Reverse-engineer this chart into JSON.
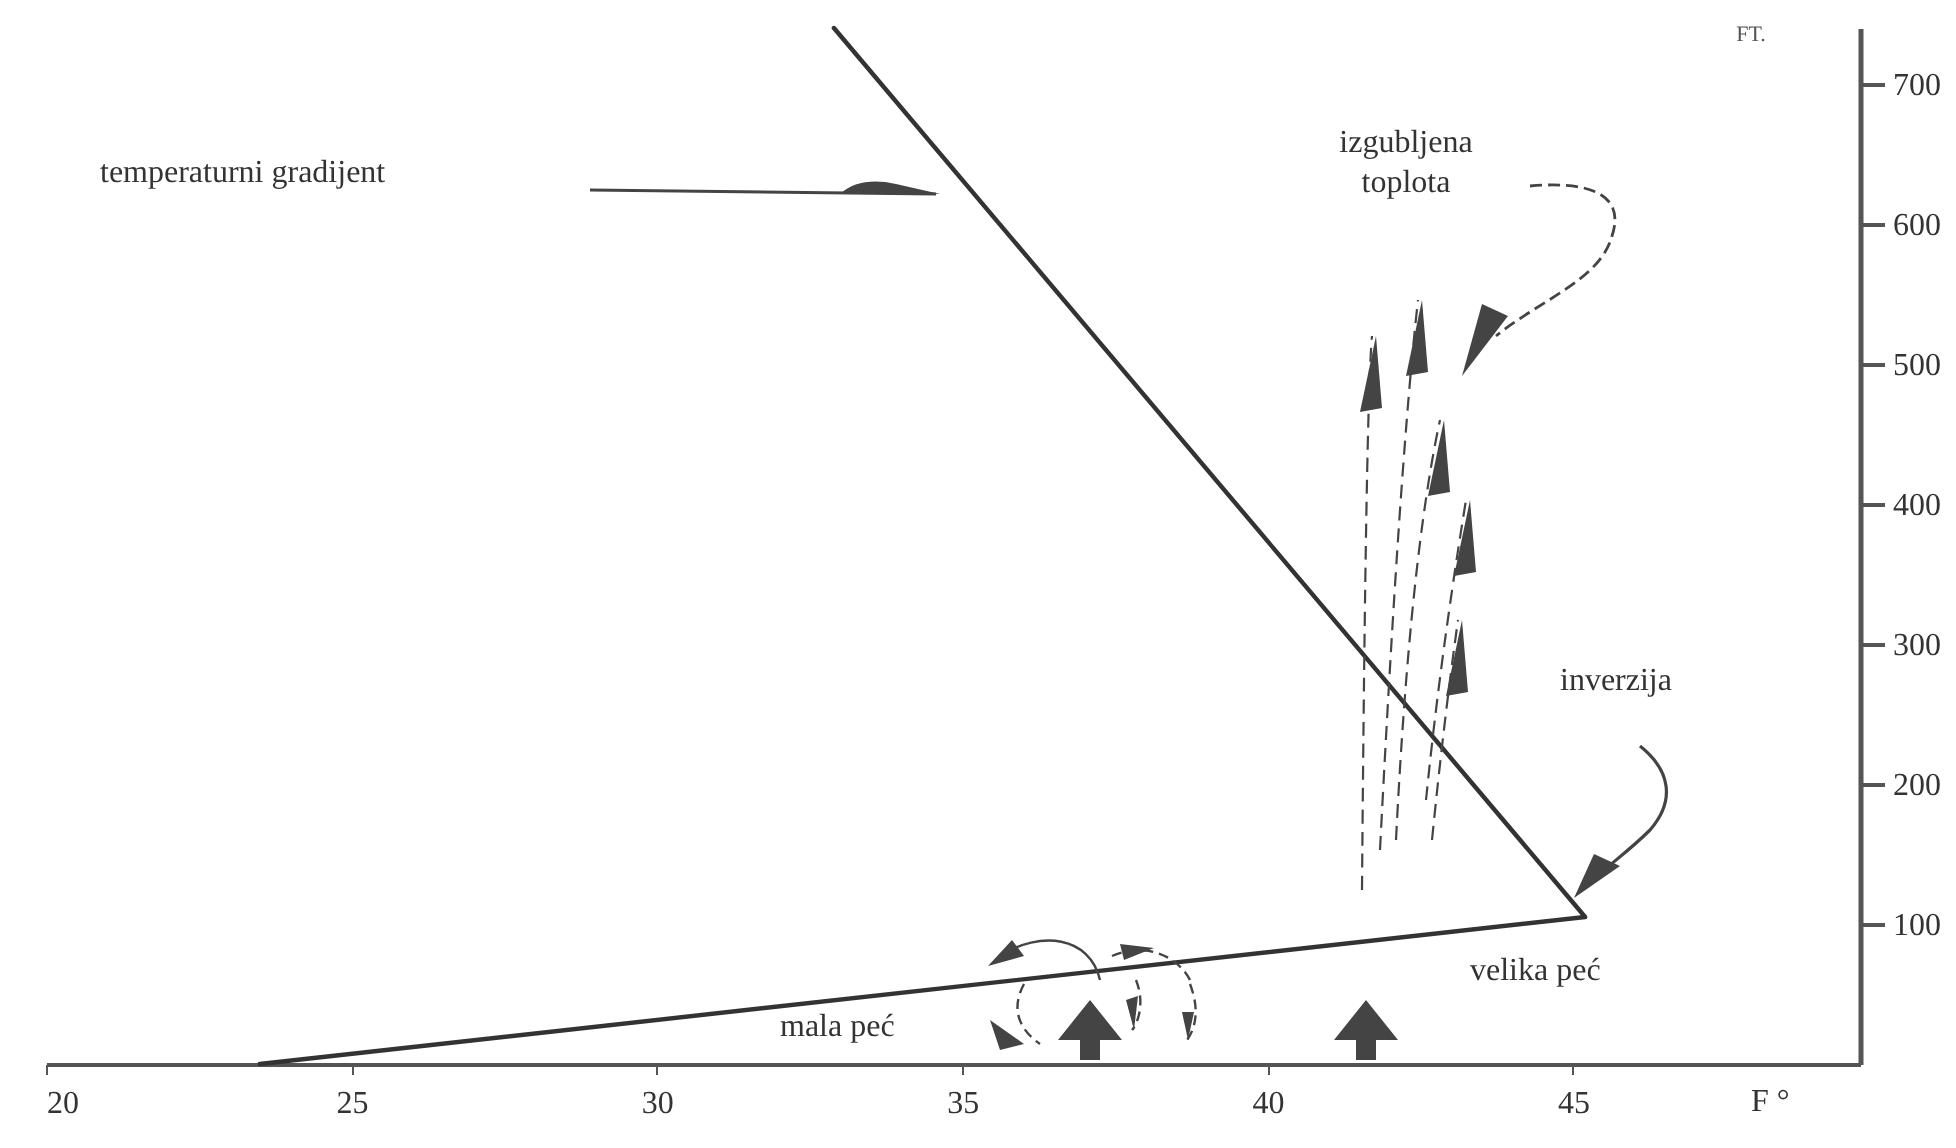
{
  "chart_data": {
    "type": "line",
    "xlabel": "F °",
    "ylabel": "FT.",
    "annotations": [
      "temperaturni gradijent",
      "izgubljena toplota",
      "inverzija",
      "mala peć",
      "velika peć"
    ],
    "series": [
      {
        "color": "#333333",
        "x": [
          23.5,
          45.2,
          32.9
        ],
        "values": [
          0,
          105,
          740
        ]
      }
    ],
    "xlim": [
      20,
      49.7
    ],
    "xticks": [
      20,
      25,
      30,
      35,
      40,
      45
    ],
    "ylim": [
      0,
      740
    ],
    "yticks": [
      100,
      200,
      300,
      400,
      500,
      600,
      700
    ],
    "grid": false,
    "marker": "none",
    "line_style": "solid"
  }
}
